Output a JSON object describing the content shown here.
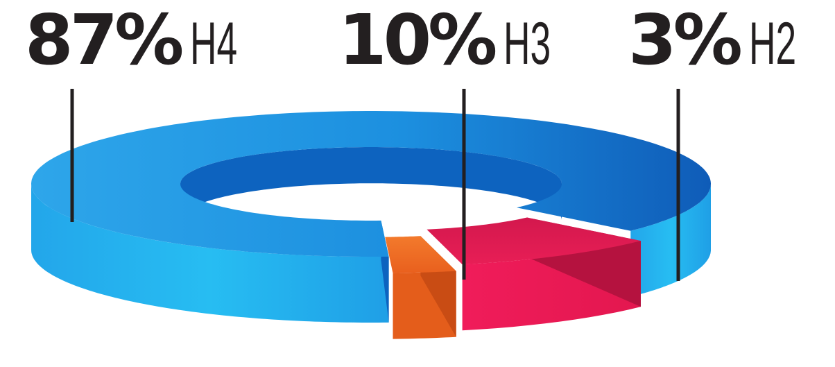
{
  "chart_data": {
    "type": "pie",
    "style": "3d-donut",
    "slices": [
      {
        "label": "H4",
        "percent_label": "87%",
        "value": 87,
        "color": "#1e9be6"
      },
      {
        "label": "H3",
        "percent_label": "10%",
        "value": 10,
        "color": "#e8174f"
      },
      {
        "label": "H2",
        "percent_label": "3%",
        "value": 3,
        "color": "#ef6a23"
      }
    ],
    "title": "",
    "legend": "none"
  }
}
